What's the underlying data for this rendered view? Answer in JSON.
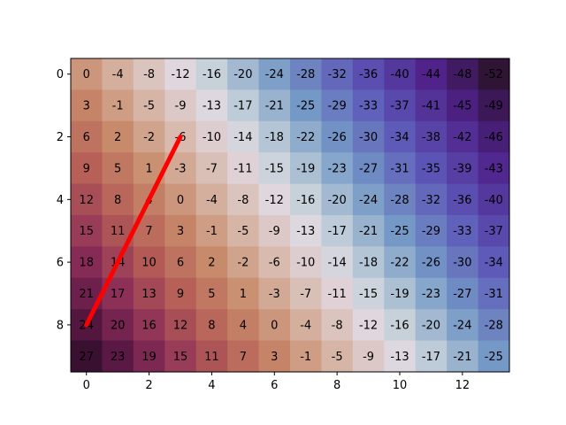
{
  "chart_data": {
    "type": "heatmap",
    "title": "",
    "xlabel": "",
    "ylabel": "",
    "rows": 10,
    "cols": 14,
    "values": [
      [
        0,
        -4,
        -8,
        -12,
        -16,
        -20,
        -24,
        -28,
        -32,
        -36,
        -40,
        -44,
        -48,
        -52
      ],
      [
        3,
        -1,
        -5,
        -9,
        -13,
        -17,
        -21,
        -25,
        -29,
        -33,
        -37,
        -41,
        -45,
        -49
      ],
      [
        6,
        2,
        -2,
        -6,
        -10,
        -14,
        -18,
        -22,
        -26,
        -30,
        -34,
        -38,
        -42,
        -46
      ],
      [
        9,
        5,
        1,
        -3,
        -7,
        -11,
        -15,
        -19,
        -23,
        -27,
        -31,
        -35,
        -39,
        -43
      ],
      [
        12,
        8,
        4,
        0,
        -4,
        -8,
        -12,
        -16,
        -20,
        -24,
        -28,
        -32,
        -36,
        -40
      ],
      [
        15,
        11,
        7,
        3,
        -1,
        -5,
        -9,
        -13,
        -17,
        -21,
        -25,
        -29,
        -33,
        -37
      ],
      [
        18,
        14,
        10,
        6,
        2,
        -2,
        -6,
        -10,
        -14,
        -18,
        -22,
        -26,
        -30,
        -34
      ],
      [
        21,
        17,
        13,
        9,
        5,
        1,
        -3,
        -7,
        -11,
        -15,
        -19,
        -23,
        -27,
        -31
      ],
      [
        24,
        20,
        16,
        12,
        8,
        4,
        0,
        -4,
        -8,
        -12,
        -16,
        -20,
        -24,
        -28
      ],
      [
        27,
        23,
        19,
        15,
        11,
        7,
        3,
        -1,
        -5,
        -9,
        -13,
        -17,
        -21,
        -25
      ]
    ],
    "colormap": "twilight_shifted",
    "value_range": [
      -52,
      27
    ],
    "xticks": [
      0,
      2,
      4,
      6,
      8,
      10,
      12
    ],
    "yticks": [
      0,
      2,
      4,
      6,
      8
    ],
    "overlay_line": {
      "points": [
        [
          0,
          8
        ],
        [
          3,
          2
        ]
      ],
      "color": "#ff0000"
    }
  }
}
